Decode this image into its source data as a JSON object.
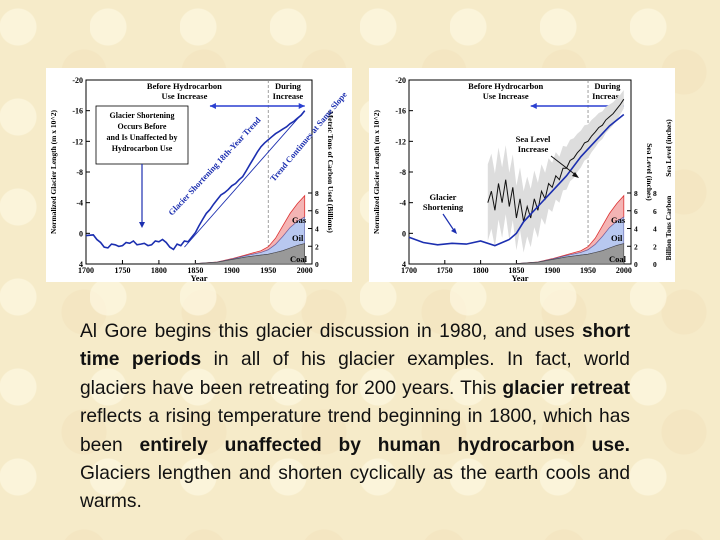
{
  "chart_data": [
    {
      "type": "line",
      "title": "",
      "xlabel": "Year",
      "ylabel": "Normalized Glacier Length (m x 10^2)",
      "ylabel_right": "Metric Tons of Carbon Used (Billions)",
      "xlim": [
        1700,
        2010
      ],
      "ylim": [
        -20,
        4
      ],
      "x_ticks": [
        "1700",
        "1750",
        "1800",
        "1850",
        "1900",
        "1950",
        "2000"
      ],
      "y_ticks": [
        "-20",
        "-16",
        "-12",
        "-8",
        "-4",
        "0",
        "4"
      ],
      "y2_ticks": [
        "8",
        "6",
        "4",
        "2",
        "0"
      ],
      "annotations": {
        "before": "Before Hydrocarbon Use Increase",
        "during": "During Increase",
        "box": [
          "Glacier Shortening",
          "Occurs Before",
          "and Is Unaffected by",
          "Hydrocarbon Use"
        ],
        "trend": "Glacier Shortening 18th-Year Trend",
        "cont": "Trend Continues at Same Slope",
        "gas": "Gas",
        "oil": "Oil",
        "coal": "Coal"
      },
      "series": [
        {
          "name": "Glacier length",
          "x": [
            1700,
            1710,
            1715,
            1720,
            1725,
            1730,
            1735,
            1740,
            1745,
            1750,
            1755,
            1760,
            1765,
            1770,
            1775,
            1780,
            1785,
            1790,
            1795,
            1800,
            1805,
            1810,
            1815,
            1820,
            1825,
            1830,
            1835,
            1840,
            1845,
            1850,
            1855,
            1860,
            1865,
            1870,
            1875,
            1880,
            1885,
            1890,
            1895,
            1900,
            1905,
            1910,
            1915,
            1920,
            1925,
            1930,
            1935,
            1940,
            1945,
            1950,
            1955,
            1960,
            1965,
            1970,
            1975,
            1980,
            1985,
            1990,
            1995,
            2000
          ],
          "values": [
            0.3,
            0.2,
            0.8,
            1.2,
            1.8,
            1.9,
            1.4,
            1.5,
            1.7,
            1.6,
            1.2,
            1.3,
            1.0,
            1.5,
            1.4,
            1.3,
            1.6,
            1.5,
            1.0,
            1.1,
            0.8,
            1.2,
            1.8,
            2.1,
            1.4,
            1.6,
            1.0,
            1.1,
            0.5,
            -0.1,
            -1.0,
            -1.8,
            -2.6,
            -3.1,
            -3.8,
            -4.4,
            -5.0,
            -5.3,
            -5.7,
            -6.2,
            -6.5,
            -7.0,
            -7.4,
            -8.2,
            -9.0,
            -9.8,
            -10.6,
            -11.3,
            -11.8,
            -12.2,
            -12.6,
            -13.0,
            -13.3,
            -13.6,
            -13.9,
            -14.3,
            -14.6,
            -15.0,
            -15.4,
            -16.0
          ]
        },
        {
          "name": "Carbon Gas",
          "x": [
            1850,
            1880,
            1900,
            1920,
            1940,
            1950,
            1960,
            1970,
            1980,
            1990,
            2000
          ],
          "values": [
            0,
            0,
            0.05,
            0.1,
            0.2,
            0.35,
            0.7,
            1.2,
            1.6,
            2.0,
            2.4
          ]
        },
        {
          "name": "Carbon Oil",
          "x": [
            1850,
            1880,
            1900,
            1920,
            1940,
            1950,
            1960,
            1970,
            1980,
            1990,
            2000
          ],
          "values": [
            0,
            0.02,
            0.05,
            0.15,
            0.3,
            0.5,
            0.9,
            1.6,
            2.3,
            2.7,
            3.0
          ]
        },
        {
          "name": "Carbon Coal",
          "x": [
            1850,
            1880,
            1900,
            1920,
            1940,
            1950,
            1960,
            1970,
            1980,
            1990,
            2000
          ],
          "values": [
            0.05,
            0.2,
            0.5,
            0.8,
            1.0,
            1.1,
            1.3,
            1.5,
            1.8,
            2.1,
            2.3
          ]
        }
      ]
    },
    {
      "type": "line",
      "title": "",
      "xlabel": "Year",
      "ylabel": "Normalized Glacier Length (m x 10^2)",
      "ylabel_right": "Sea Level (inches)",
      "ylabel_right2": "Billion Tons Carbon",
      "xlim": [
        1700,
        2010
      ],
      "ylim": [
        -20,
        4
      ],
      "x_ticks": [
        "1700",
        "1750",
        "1800",
        "1850",
        "1900",
        "1950",
        "2000"
      ],
      "y_ticks": [
        "-20",
        "-16",
        "-12",
        "-8",
        "-4",
        "0",
        "4"
      ],
      "y2_ticks": [
        "8",
        "6",
        "4",
        "2",
        "0"
      ],
      "y3_ticks": [
        "8",
        "6",
        "4",
        "2",
        "0"
      ],
      "annotations": {
        "before": "Before Hydrocarbon Use Increase",
        "during": "During Increase",
        "sea": "Sea Level Increase",
        "glacier": "Glacier Shortening",
        "gas": "Gas",
        "oil": "Oil",
        "coal": "Coal"
      },
      "series": [
        {
          "name": "Glacier length",
          "x": [
            1700,
            1720,
            1740,
            1760,
            1780,
            1800,
            1820,
            1840,
            1850,
            1860,
            1880,
            1900,
            1920,
            1940,
            1960,
            1980,
            2000
          ],
          "values": [
            0.5,
            1.2,
            1.5,
            1.3,
            1.4,
            1.0,
            1.6,
            0.8,
            0,
            -1.5,
            -3.5,
            -5.5,
            -7.5,
            -10,
            -12,
            -14,
            -15.5
          ]
        },
        {
          "name": "Sea level",
          "x": [
            1810,
            1815,
            1820,
            1825,
            1830,
            1835,
            1840,
            1845,
            1850,
            1855,
            1860,
            1865,
            1870,
            1875,
            1880,
            1885,
            1890,
            1895,
            1900,
            1905,
            1910,
            1915,
            1920,
            1925,
            1930,
            1935,
            1940,
            1945,
            1950,
            1955,
            1960,
            1965,
            1970,
            1975,
            1980,
            1985,
            1990,
            1995,
            2000
          ],
          "values": [
            -4.0,
            -5.5,
            -3.0,
            -6.5,
            -4.0,
            -7.0,
            -3.5,
            -6.0,
            -2.0,
            -4.5,
            -1.5,
            -3.5,
            -2.0,
            -4.5,
            -3.0,
            -5.5,
            -4.5,
            -6.5,
            -6.0,
            -7.5,
            -7.0,
            -8.5,
            -8.5,
            -9.5,
            -9.8,
            -10.5,
            -11.0,
            -11.8,
            -12.0,
            -12.7,
            -13.2,
            -13.8,
            -14.1,
            -14.8,
            -15.2,
            -15.6,
            -16.2,
            -16.8,
            -17.5
          ]
        },
        {
          "name": "Carbon Gas",
          "x": [
            1850,
            1880,
            1900,
            1920,
            1940,
            1950,
            1960,
            1970,
            1980,
            1990,
            2000
          ],
          "values": [
            0,
            0,
            0.05,
            0.1,
            0.2,
            0.35,
            0.7,
            1.2,
            1.6,
            2.0,
            2.4
          ]
        },
        {
          "name": "Carbon Oil",
          "x": [
            1850,
            1880,
            1900,
            1920,
            1940,
            1950,
            1960,
            1970,
            1980,
            1990,
            2000
          ],
          "values": [
            0,
            0.02,
            0.05,
            0.15,
            0.3,
            0.5,
            0.9,
            1.6,
            2.3,
            2.7,
            3.0
          ]
        },
        {
          "name": "Carbon Coal",
          "x": [
            1850,
            1880,
            1900,
            1920,
            1940,
            1950,
            1960,
            1970,
            1980,
            1990,
            2000
          ],
          "values": [
            0.05,
            0.2,
            0.5,
            0.8,
            1.0,
            1.1,
            1.3,
            1.5,
            1.8,
            2.1,
            2.3
          ]
        }
      ]
    }
  ],
  "caption": {
    "t1": "Al Gore begins this glacier discussion in 1980, and uses ",
    "b1": "short time periods",
    "t2": " in all of his glacier examples. In fact, world glaciers have been retreating for 200 years. This ",
    "b2": "glacier retreat",
    "t3": " reflects a rising temperature trend beginning in 1800, which has been ",
    "b3": "entirely unaffected by human hydrocarbon use.",
    "t4": "  Glaciers lengthen and shorten cyclically as the earth cools and warms."
  }
}
